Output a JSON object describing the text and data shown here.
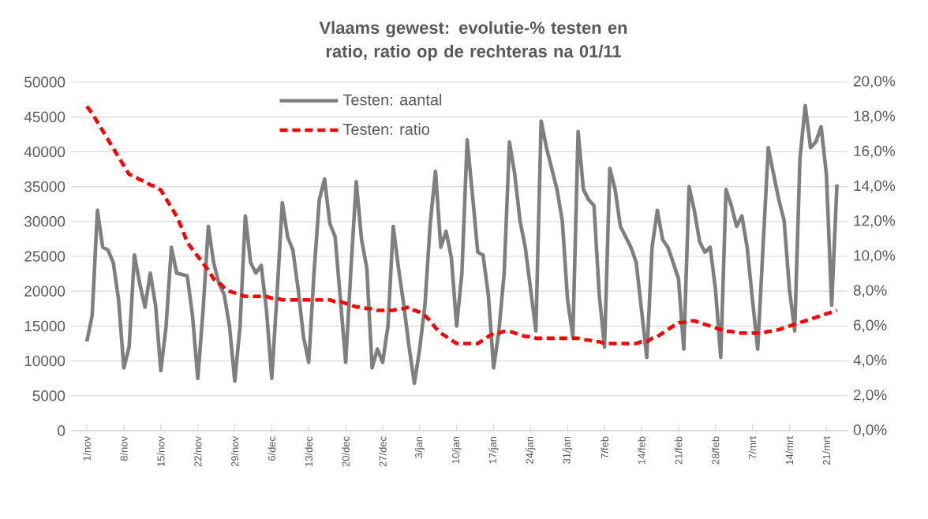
{
  "chart_data": {
    "type": "line",
    "title": "Vlaams gewest: evolutie-% testen en ratio, ratio op de rechteras na 01/11",
    "categories": [
      "1/nov",
      null,
      null,
      null,
      null,
      null,
      null,
      "8/nov",
      null,
      null,
      null,
      null,
      null,
      null,
      "15/nov",
      null,
      null,
      null,
      null,
      null,
      null,
      "22/nov",
      null,
      null,
      null,
      null,
      null,
      null,
      "29/nov",
      null,
      null,
      null,
      null,
      null,
      null,
      "6/dec",
      null,
      null,
      null,
      null,
      null,
      null,
      "13/dec",
      null,
      null,
      null,
      null,
      null,
      null,
      "20/dec",
      null,
      null,
      null,
      null,
      null,
      null,
      "27/dec",
      null,
      null,
      null,
      null,
      null,
      null,
      "3/jan",
      null,
      null,
      null,
      null,
      null,
      null,
      "10/jan",
      null,
      null,
      null,
      null,
      null,
      null,
      "17/jan",
      null,
      null,
      null,
      null,
      null,
      null,
      "24/jan",
      null,
      null,
      null,
      null,
      null,
      null,
      "31/jan",
      null,
      null,
      null,
      null,
      null,
      null,
      "7/feb",
      null,
      null,
      null,
      null,
      null,
      null,
      "14/feb",
      null,
      null,
      null,
      null,
      null,
      null,
      "21/feb",
      null,
      null,
      null,
      null,
      null,
      null,
      "28/feb",
      null,
      null,
      null,
      null,
      null,
      null,
      "7/mrt",
      null,
      null,
      null,
      null,
      null,
      null,
      "14/mrt",
      null,
      null,
      null,
      null,
      null,
      null,
      "21/mrt",
      null,
      null
    ],
    "ylim": [
      0,
      50000
    ],
    "yticks": [
      0,
      5000,
      10000,
      15000,
      20000,
      25000,
      30000,
      35000,
      40000,
      45000,
      50000
    ],
    "y2lim": [
      0,
      20
    ],
    "y2ticks": [
      {
        "value": 0,
        "label": "0,0%"
      },
      {
        "value": 2,
        "label": "2,0%"
      },
      {
        "value": 4,
        "label": "4,0%"
      },
      {
        "value": 6,
        "label": "6,0%"
      },
      {
        "value": 8,
        "label": "8,0%"
      },
      {
        "value": 10,
        "label": "10,0%"
      },
      {
        "value": 12,
        "label": "12,0%"
      },
      {
        "value": 14,
        "label": "14,0%"
      },
      {
        "value": 16,
        "label": "16,0%"
      },
      {
        "value": 18,
        "label": "18,0%"
      },
      {
        "value": 20,
        "label": "20,0%"
      }
    ],
    "grid": "y",
    "legend": "top",
    "marker": "none",
    "series": [
      {
        "name": "Testen: aantal",
        "color": "#7f7f7f",
        "line_style": "solid",
        "values": [
          12800,
          16500,
          31600,
          26300,
          25900,
          24100,
          18800,
          9000,
          12000,
          25200,
          21100,
          17700,
          22600,
          18000,
          8600,
          15000,
          26300,
          22600,
          22400,
          22200,
          16500,
          7500,
          17300,
          29300,
          24100,
          21100,
          19500,
          15000,
          7100,
          15000,
          30800,
          24100,
          22600,
          23700,
          17300,
          7500,
          19500,
          32700,
          27800,
          25900,
          20300,
          13500,
          9800,
          22600,
          33100,
          36100,
          29700,
          27800,
          18800,
          9800,
          23300,
          35700,
          27400,
          23300,
          9000,
          11700,
          9800,
          15000,
          29300,
          23300,
          18000,
          12000,
          6800,
          11700,
          18000,
          29700,
          37200,
          26300,
          28600,
          24800,
          15000,
          22600,
          41700,
          33800,
          25600,
          25200,
          19500,
          9000,
          14300,
          22600,
          41400,
          36800,
          30100,
          26300,
          20300,
          14300,
          44400,
          40600,
          37600,
          34600,
          30100,
          18800,
          13500,
          42900,
          34600,
          33100,
          32300,
          19500,
          12000,
          37600,
          34600,
          29300,
          27800,
          26300,
          24100,
          17300,
          10500,
          26300,
          31600,
          27400,
          26300,
          24100,
          21800,
          11700,
          35000,
          31600,
          27100,
          25600,
          26300,
          20300,
          10500,
          34600,
          32300,
          29300,
          30800,
          26300,
          18800,
          11700,
          26300,
          40600,
          36800,
          33100,
          30100,
          20300,
          14300,
          39100,
          46600,
          40600,
          41400,
          43600,
          36800,
          18000,
          35300
        ]
      },
      {
        "name": "Testen: ratio",
        "color": "#ff0000",
        "line_style": "dashed",
        "axis": "y2",
        "values": [
          18.6,
          18.2,
          17.7,
          17.2,
          16.7,
          16.2,
          15.7,
          15.2,
          14.7,
          14.6,
          14.4,
          14.3,
          14.1,
          14.0,
          13.8,
          13.3,
          12.8,
          12.3,
          11.6,
          10.8,
          10.4,
          10.0,
          9.6,
          9.2,
          8.7,
          8.5,
          8.2,
          8.0,
          7.9,
          7.8,
          7.7,
          7.7,
          7.7,
          7.7,
          7.7,
          7.6,
          7.6,
          7.5,
          7.5,
          7.5,
          7.5,
          7.5,
          7.5,
          7.5,
          7.5,
          7.5,
          7.5,
          7.4,
          7.4,
          7.3,
          7.2,
          7.1,
          7.1,
          7.0,
          7.0,
          6.9,
          6.9,
          6.9,
          6.9,
          7.0,
          7.0,
          7.1,
          6.9,
          6.8,
          6.6,
          6.3,
          5.9,
          5.6,
          5.4,
          5.2,
          5.0,
          5.0,
          5.0,
          5.0,
          5.0,
          5.2,
          5.4,
          5.6,
          5.6,
          5.7,
          5.7,
          5.6,
          5.5,
          5.4,
          5.4,
          5.3,
          5.3,
          5.3,
          5.3,
          5.3,
          5.3,
          5.3,
          5.3,
          5.3,
          5.2,
          5.2,
          5.1,
          5.1,
          5.0,
          5.0,
          5.0,
          5.0,
          5.0,
          5.0,
          5.0,
          5.1,
          5.1,
          5.3,
          5.4,
          5.6,
          5.8,
          6.0,
          6.2,
          6.2,
          6.3,
          6.3,
          6.2,
          6.1,
          6.0,
          5.9,
          5.8,
          5.7,
          5.7,
          5.6,
          5.6,
          5.6,
          5.6,
          5.6,
          5.6,
          5.7,
          5.7,
          5.8,
          5.9,
          6.0,
          6.1,
          6.2,
          6.3,
          6.4,
          6.5,
          6.6,
          6.7,
          6.8,
          6.9
        ]
      }
    ]
  }
}
